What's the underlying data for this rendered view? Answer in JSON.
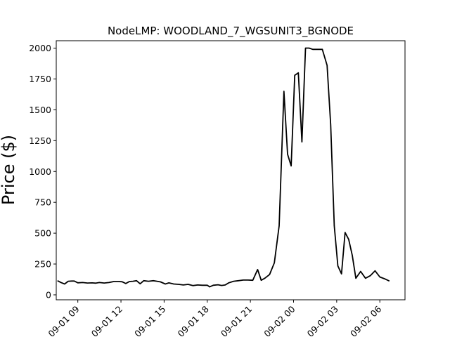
{
  "chart_data": {
    "type": "line",
    "title": "NodeLMP: WOODLAND_7_WGSUNIT3_BGNODE",
    "xlabel": "",
    "ylabel": "Price ($)",
    "ylim": [
      -40,
      2060
    ],
    "y_ticks": [
      0,
      250,
      500,
      750,
      1000,
      1250,
      1500,
      1750,
      2000
    ],
    "y_tick_labels": [
      "0",
      "250",
      "500",
      "750",
      "1000",
      "1250",
      "1500",
      "1750",
      "2000"
    ],
    "x_ticks": [
      "2019-09-01 09:00",
      "2019-09-01 12:00",
      "2019-09-01 15:00",
      "2019-09-01 18:00",
      "2019-09-01 21:00",
      "2019-09-02 00:00",
      "2019-09-02 03:00",
      "2019-09-02 06:00"
    ],
    "x_tick_labels": [
      "09-01 09",
      "09-01 12",
      "09-01 15",
      "09-01 18",
      "09-01 21",
      "09-02 00",
      "09-02 03",
      "09-02 06"
    ],
    "xlim": [
      "2019-09-01 07:30",
      "2019-09-02 07:45"
    ],
    "grid": false,
    "line_color": "#000000",
    "series": [
      {
        "x": [
          "2019-09-01 07:35",
          "2019-09-01 07:50",
          "2019-09-01 08:05",
          "2019-09-01 08:20",
          "2019-09-01 08:35",
          "2019-09-01 08:45",
          "2019-09-01 09:00",
          "2019-09-01 09:20",
          "2019-09-01 09:40",
          "2019-09-01 10:00",
          "2019-09-01 10:15",
          "2019-09-01 10:30",
          "2019-09-01 10:50",
          "2019-09-01 11:10",
          "2019-09-01 11:30",
          "2019-09-01 11:50",
          "2019-09-01 12:05",
          "2019-09-01 12:20",
          "2019-09-01 12:35",
          "2019-09-01 12:50",
          "2019-09-01 13:05",
          "2019-09-01 13:20",
          "2019-09-01 13:35",
          "2019-09-01 13:55",
          "2019-09-01 14:15",
          "2019-09-01 14:30",
          "2019-09-01 14:45",
          "2019-09-01 15:05",
          "2019-09-01 15:20",
          "2019-09-01 15:40",
          "2019-09-01 16:00",
          "2019-09-01 16:20",
          "2019-09-01 16:40",
          "2019-09-01 17:00",
          "2019-09-01 17:20",
          "2019-09-01 17:40",
          "2019-09-01 18:00",
          "2019-09-01 18:10",
          "2019-09-01 18:25",
          "2019-09-01 18:45",
          "2019-09-01 19:00",
          "2019-09-01 19:15",
          "2019-09-01 19:30",
          "2019-09-01 19:50",
          "2019-09-01 20:10",
          "2019-09-01 20:30",
          "2019-09-01 20:50",
          "2019-09-01 21:10",
          "2019-09-01 21:30",
          "2019-09-01 21:45",
          "2019-09-01 22:00",
          "2019-09-01 22:20",
          "2019-09-01 22:40",
          "2019-09-01 23:00",
          "2019-09-01 23:20",
          "2019-09-01 23:35",
          "2019-09-01 23:50",
          "2019-09-02 00:05",
          "2019-09-02 00:20",
          "2019-09-02 00:35",
          "2019-09-02 00:50",
          "2019-09-02 01:05",
          "2019-09-02 01:20",
          "2019-09-02 01:40",
          "2019-09-02 02:00",
          "2019-09-02 02:20",
          "2019-09-02 02:35",
          "2019-09-02 02:50",
          "2019-09-02 03:05",
          "2019-09-02 03:20",
          "2019-09-02 03:35",
          "2019-09-02 03:50",
          "2019-09-02 04:05",
          "2019-09-02 04:20",
          "2019-09-02 04:40",
          "2019-09-02 05:00",
          "2019-09-02 05:20",
          "2019-09-02 05:40",
          "2019-09-02 06:00",
          "2019-09-02 06:20",
          "2019-09-02 06:40"
        ],
        "y": [
          115,
          100,
          88,
          110,
          112,
          112,
          98,
          100,
          96,
          97,
          95,
          100,
          96,
          100,
          108,
          108,
          106,
          92,
          108,
          110,
          115,
          90,
          115,
          110,
          115,
          110,
          105,
          88,
          97,
          88,
          85,
          80,
          85,
          75,
          80,
          78,
          78,
          65,
          78,
          82,
          76,
          80,
          98,
          110,
          115,
          120,
          120,
          118,
          205,
          118,
          135,
          165,
          260,
          560,
          1650,
          1140,
          1045,
          1780,
          1800,
          1240,
          2000,
          2000,
          1990,
          1990,
          1990,
          1860,
          1380,
          560,
          235,
          170,
          505,
          450,
          320,
          135,
          190,
          135,
          155,
          195,
          145,
          130,
          112
        ]
      }
    ]
  }
}
